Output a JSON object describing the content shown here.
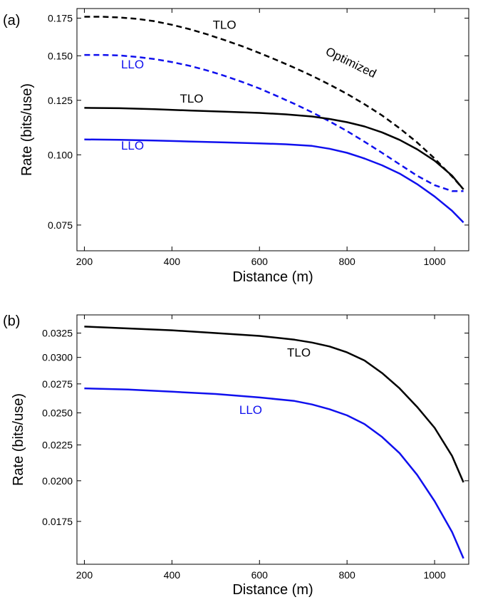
{
  "chart_data": [
    {
      "panel_label": "(a)",
      "type": "line",
      "xlabel": "Distance (m)",
      "ylabel": "Rate (bits/use)",
      "yscale": "log",
      "xlim": [
        183,
        1078
      ],
      "ylim": [
        0.0675,
        0.182
      ],
      "xticks": [
        200,
        400,
        600,
        800,
        1000
      ],
      "yticks": [
        0.075,
        0.1,
        0.125,
        0.15,
        0.175
      ],
      "ytick_labels": [
        "0.075",
        "0.100",
        "0.125",
        "0.150",
        "0.175"
      ],
      "grid": false,
      "series": [
        {
          "label": "TLO",
          "color": "#000000",
          "dash": true,
          "x": [
            200,
            240,
            280,
            320,
            360,
            400,
            440,
            480,
            520,
            560,
            600,
            640,
            680,
            720,
            760,
            800,
            840,
            880,
            920,
            960,
            1000,
            1040,
            1066
          ],
          "y": [
            0.176,
            0.176,
            0.1755,
            0.1745,
            0.1728,
            0.1703,
            0.1673,
            0.1638,
            0.16,
            0.156,
            0.1517,
            0.1473,
            0.1428,
            0.1382,
            0.1333,
            0.1283,
            0.123,
            0.1175,
            0.1115,
            0.1052,
            0.0985,
            0.0915,
            0.0868
          ]
        },
        {
          "label": "LLO",
          "color": "#1010ee",
          "dash": true,
          "x": [
            200,
            240,
            280,
            320,
            360,
            400,
            440,
            480,
            520,
            560,
            600,
            640,
            680,
            720,
            760,
            800,
            840,
            880,
            920,
            960,
            1000,
            1040,
            1066
          ],
          "y": [
            0.1505,
            0.1505,
            0.1502,
            0.1493,
            0.148,
            0.1462,
            0.144,
            0.1413,
            0.1382,
            0.1348,
            0.1312,
            0.1272,
            0.1232,
            0.119,
            0.1147,
            0.1102,
            0.1055,
            0.1008,
            0.0962,
            0.0918,
            0.0883,
            0.0862,
            0.0862
          ]
        },
        {
          "label": "TLO",
          "color": "#000000",
          "dash": false,
          "x": [
            200,
            280,
            360,
            440,
            520,
            600,
            660,
            720,
            760,
            800,
            840,
            880,
            920,
            960,
            1000,
            1040,
            1066
          ],
          "y": [
            0.1212,
            0.121,
            0.1205,
            0.1199,
            0.1193,
            0.1187,
            0.118,
            0.117,
            0.1158,
            0.1143,
            0.1123,
            0.1096,
            0.1063,
            0.1023,
            0.0976,
            0.0918,
            0.0868
          ]
        },
        {
          "label": "LLO",
          "color": "#1010ee",
          "dash": false,
          "x": [
            200,
            280,
            360,
            440,
            520,
            600,
            660,
            720,
            760,
            800,
            840,
            880,
            920,
            960,
            1000,
            1040,
            1066
          ],
          "y": [
            0.1065,
            0.1063,
            0.106,
            0.1056,
            0.1052,
            0.1048,
            0.1044,
            0.1037,
            0.1025,
            0.1008,
            0.0985,
            0.0958,
            0.0926,
            0.0887,
            0.0843,
            0.0795,
            0.0758
          ]
        }
      ],
      "annotations": [
        {
          "text": "TLO",
          "color": "#000000",
          "x": 520,
          "y": 0.1675,
          "rotate": 0
        },
        {
          "text": "Optimized",
          "color": "#000000",
          "x": 805,
          "y": 0.1438,
          "rotate": 26
        },
        {
          "text": "LLO",
          "color": "#1010ee",
          "x": 310,
          "y": 0.1425,
          "rotate": 0
        },
        {
          "text": "TLO",
          "color": "#000000",
          "x": 445,
          "y": 0.1238,
          "rotate": 0
        },
        {
          "text": "LLO",
          "color": "#1010ee",
          "x": 310,
          "y": 0.1022,
          "rotate": 0
        }
      ]
    },
    {
      "panel_label": "(b)",
      "type": "line",
      "xlabel": "Distance (m)",
      "ylabel": "Rate (bits/use)",
      "yscale": "log",
      "xlim": [
        183,
        1078
      ],
      "ylim": [
        0.0152,
        0.0345
      ],
      "xticks": [
        200,
        400,
        600,
        800,
        1000
      ],
      "yticks": [
        0.0175,
        0.02,
        0.0225,
        0.025,
        0.0275,
        0.03,
        0.0325
      ],
      "ytick_labels": [
        "0.0175",
        "0.0200",
        "0.0225",
        "0.0250",
        "0.0275",
        "0.0300",
        "0.0325"
      ],
      "grid": false,
      "series": [
        {
          "label": "TLO",
          "color": "#000000",
          "dash": false,
          "x": [
            200,
            300,
            400,
            500,
            600,
            680,
            720,
            760,
            800,
            840,
            880,
            920,
            960,
            1000,
            1040,
            1066
          ],
          "y": [
            0.0332,
            0.033,
            0.0328,
            0.0325,
            0.0322,
            0.0318,
            0.0315,
            0.0311,
            0.0305,
            0.0297,
            0.0285,
            0.0271,
            0.0255,
            0.0238,
            0.0217,
            0.0199
          ]
        },
        {
          "label": "LLO",
          "color": "#1010ee",
          "dash": false,
          "x": [
            200,
            300,
            400,
            500,
            600,
            680,
            720,
            760,
            800,
            840,
            880,
            920,
            960,
            1000,
            1040,
            1066
          ],
          "y": [
            0.0271,
            0.027,
            0.0268,
            0.0266,
            0.0263,
            0.026,
            0.0257,
            0.0253,
            0.0248,
            0.0241,
            0.0231,
            0.0219,
            0.0204,
            0.0187,
            0.0169,
            0.0155
          ]
        }
      ],
      "annotations": [
        {
          "text": "TLO",
          "color": "#000000",
          "x": 690,
          "y": 0.0301,
          "rotate": 0
        },
        {
          "text": "LLO",
          "color": "#1010ee",
          "x": 580,
          "y": 0.0249,
          "rotate": 0
        }
      ]
    }
  ]
}
